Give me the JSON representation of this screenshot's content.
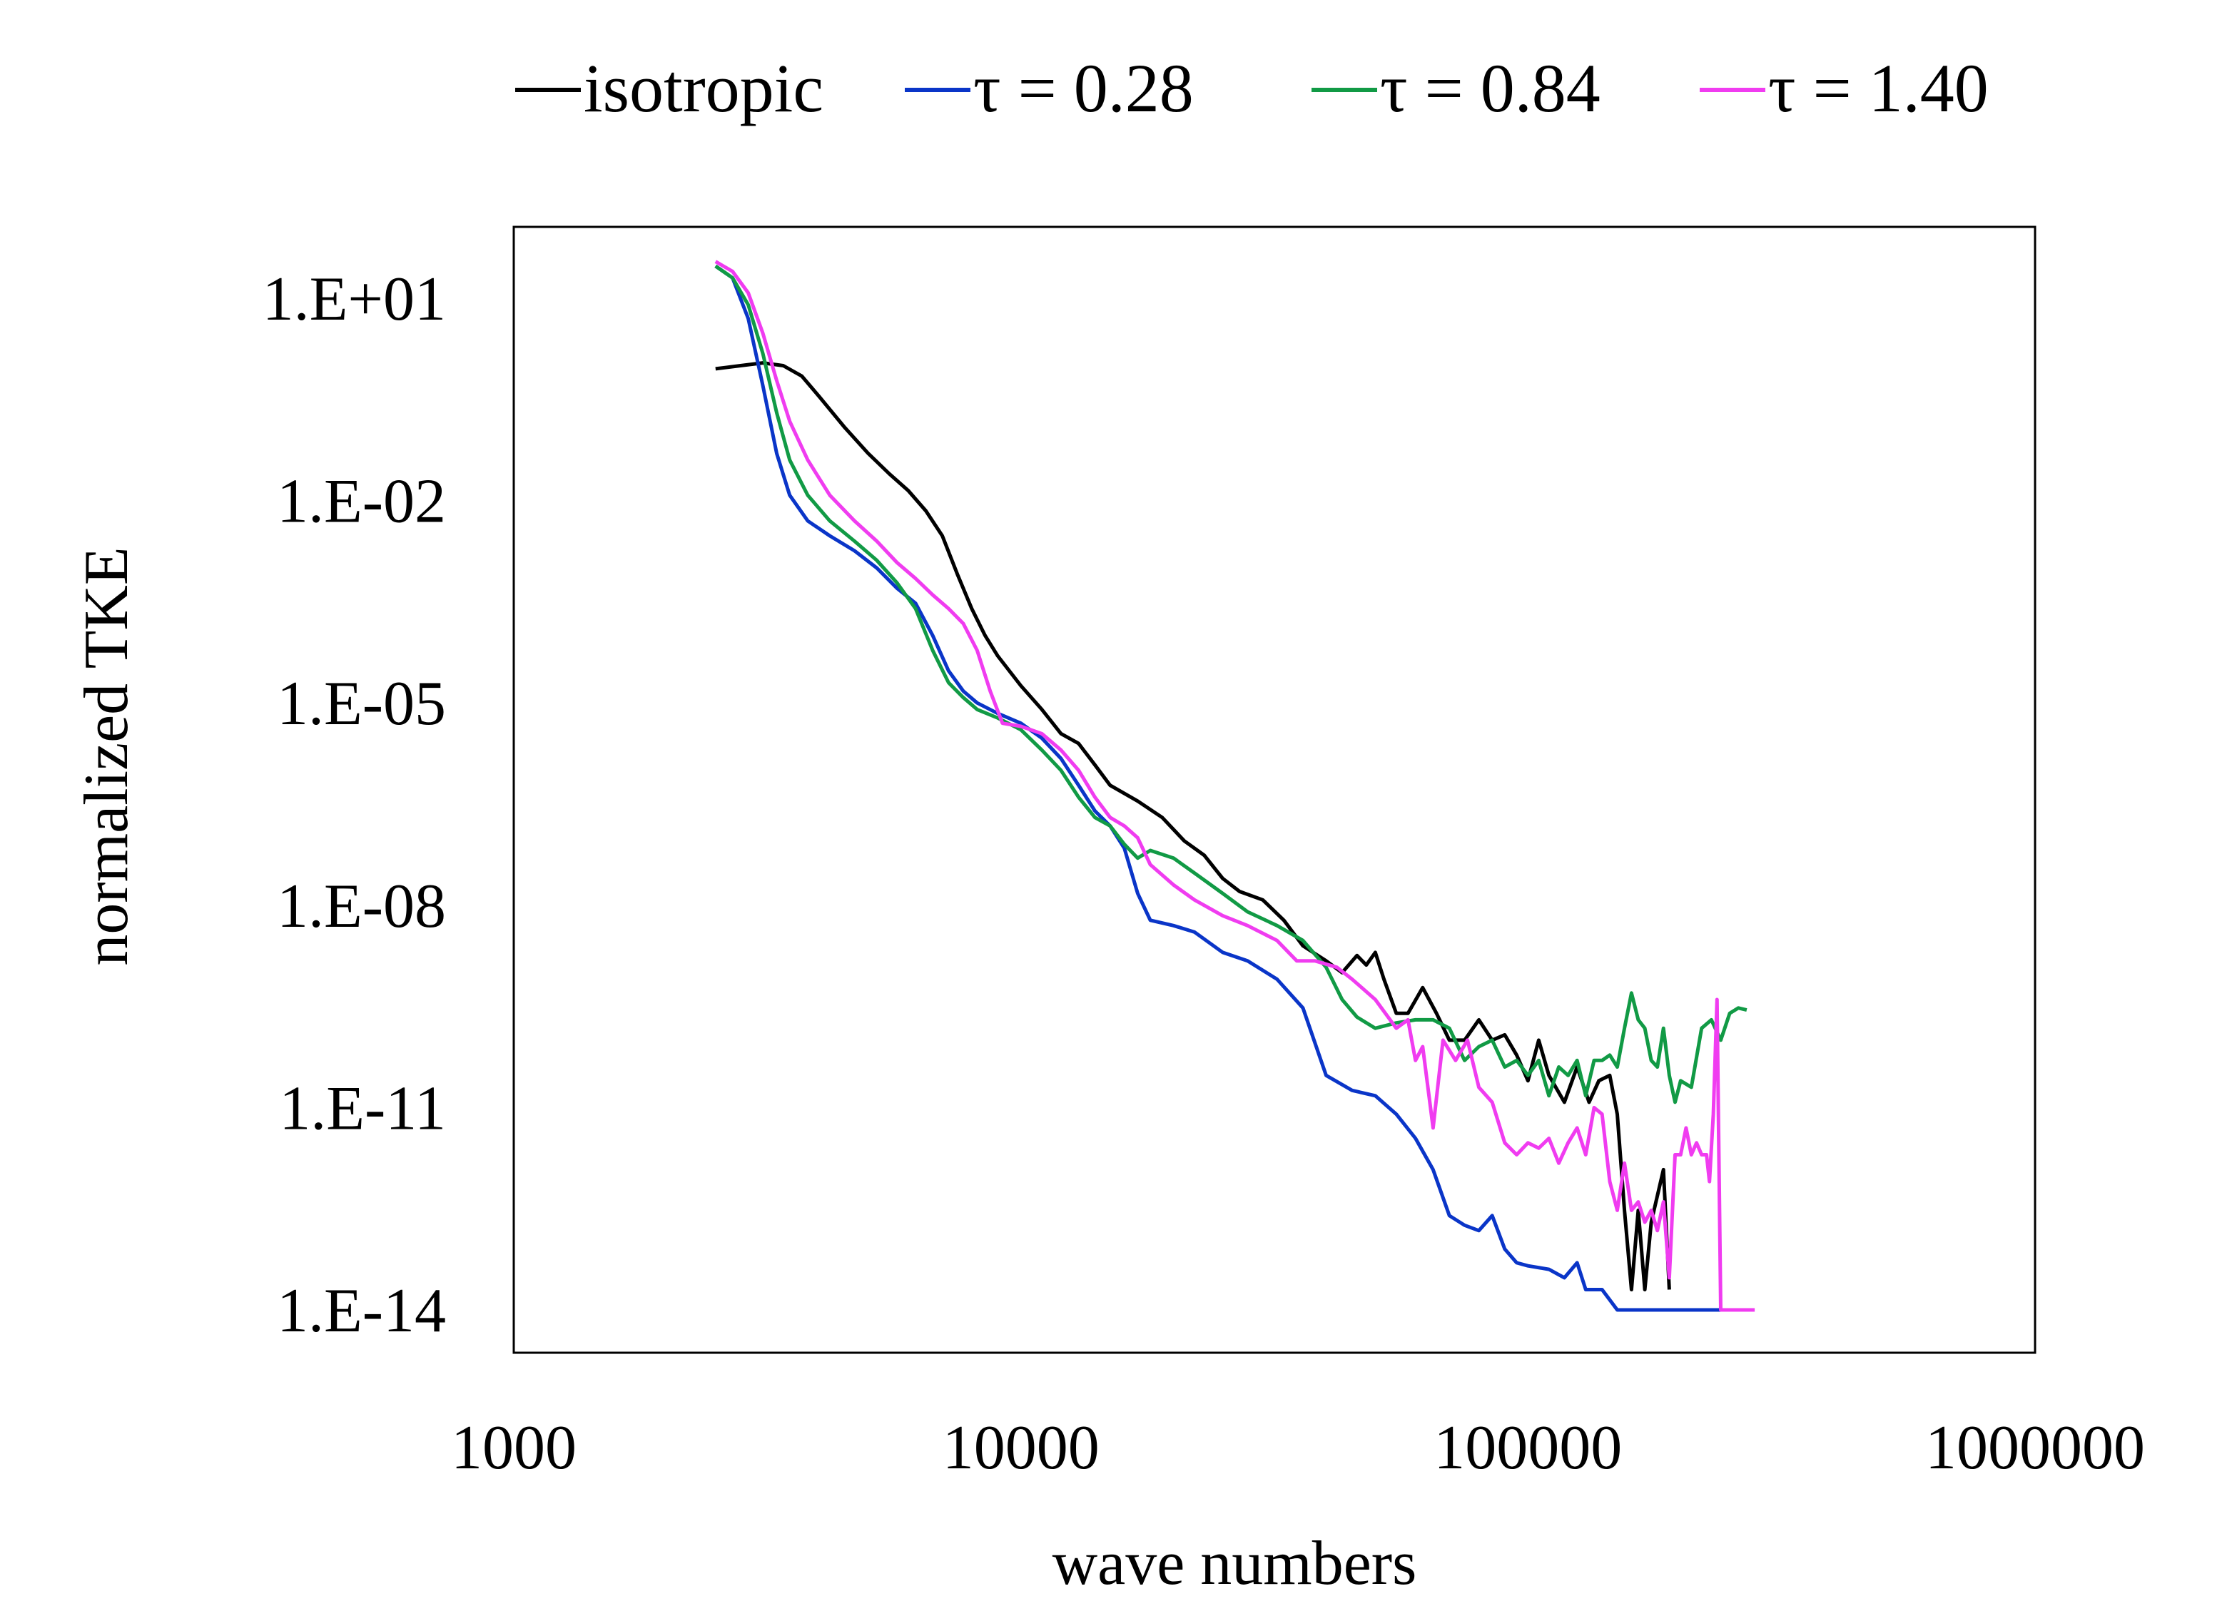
{
  "chart_data": {
    "type": "line",
    "xscale": "log",
    "yscale": "log",
    "xlabel": "wave numbers",
    "ylabel": "normalized TKE",
    "xlim": [
      1000,
      1000000
    ],
    "ylim": [
      1e-14,
      100.0
    ],
    "x_ticks": [
      {
        "value": 1000,
        "label": "1000"
      },
      {
        "value": 10000,
        "label": "10000"
      },
      {
        "value": 100000,
        "label": "100000"
      },
      {
        "value": 1000000,
        "label": "1000000"
      }
    ],
    "y_ticks": [
      {
        "value": 10.0,
        "label": "1.E+01"
      },
      {
        "value": 0.01,
        "label": "1.E-02"
      },
      {
        "value": 1e-05,
        "label": "1.E-05"
      },
      {
        "value": 1e-08,
        "label": "1.E-08"
      },
      {
        "value": 1e-11,
        "label": "1.E-11"
      },
      {
        "value": 1e-14,
        "label": "1.E-14"
      }
    ],
    "grid": false,
    "legend_position": "top",
    "series": [
      {
        "name": "isotropic",
        "color": "#000000",
        "points": [
          [
            2500,
            0.9
          ],
          [
            2800,
            1.0
          ],
          [
            3100,
            1.1
          ],
          [
            3400,
            1.0
          ],
          [
            3700,
            0.7
          ],
          [
            4000,
            0.35
          ],
          [
            4500,
            0.12
          ],
          [
            5000,
            0.05
          ],
          [
            5500,
            0.025
          ],
          [
            6000,
            0.014
          ],
          [
            6500,
            0.007
          ],
          [
            7000,
            0.003
          ],
          [
            7500,
            0.0008
          ],
          [
            8000,
            0.00025
          ],
          [
            8500,
            0.0001
          ],
          [
            9000,
            5e-05
          ],
          [
            10000,
            1.8e-05
          ],
          [
            11000,
            8e-06
          ],
          [
            12000,
            3.5e-06
          ],
          [
            13000,
            2.5e-06
          ],
          [
            14000,
            1.2e-06
          ],
          [
            15000,
            6e-07
          ],
          [
            17000,
            3.5e-07
          ],
          [
            19000,
            2e-07
          ],
          [
            21000,
            9e-08
          ],
          [
            23000,
            5.5e-08
          ],
          [
            25000,
            2.5e-08
          ],
          [
            27000,
            1.6e-08
          ],
          [
            30000,
            1.2e-08
          ],
          [
            33000,
            6e-09
          ],
          [
            36000,
            2.5e-09
          ],
          [
            40000,
            1.5e-09
          ],
          [
            43000,
            1e-09
          ],
          [
            46000,
            1.8e-09
          ],
          [
            48000,
            1.3e-09
          ],
          [
            50000,
            2e-09
          ],
          [
            52000,
            8e-10
          ],
          [
            55000,
            2.5e-10
          ],
          [
            58000,
            2.5e-10
          ],
          [
            62000,
            6e-10
          ],
          [
            66000,
            2.5e-10
          ],
          [
            70000,
            1e-10
          ],
          [
            75000,
            1e-10
          ],
          [
            80000,
            2e-10
          ],
          [
            85000,
            1e-10
          ],
          [
            90000,
            1.2e-10
          ],
          [
            95000,
            6e-11
          ],
          [
            100000,
            2.5e-11
          ],
          [
            105000,
            1e-10
          ],
          [
            110000,
            3e-11
          ],
          [
            118000,
            1.2e-11
          ],
          [
            125000,
            4e-11
          ],
          [
            132000,
            1.2e-11
          ],
          [
            138000,
            2.5e-11
          ],
          [
            145000,
            3e-11
          ],
          [
            150000,
            8e-12
          ],
          [
            155000,
            3e-13
          ],
          [
            160000,
            2e-14
          ],
          [
            165000,
            3e-13
          ],
          [
            170000,
            2e-14
          ],
          [
            175000,
            2e-13
          ],
          [
            185000,
            1.2e-12
          ],
          [
            190000,
            2e-14
          ]
        ]
      },
      {
        "name": "τ = 0.28",
        "color": "#0a35c8",
        "points": [
          [
            2500,
            30
          ],
          [
            2700,
            20
          ],
          [
            2900,
            5
          ],
          [
            3100,
            0.5
          ],
          [
            3300,
            0.05
          ],
          [
            3500,
            0.012
          ],
          [
            3800,
            0.005
          ],
          [
            4200,
            0.003
          ],
          [
            4700,
            0.0018
          ],
          [
            5200,
            0.001
          ],
          [
            5700,
            0.0005
          ],
          [
            6200,
            0.0003
          ],
          [
            6700,
            0.0001
          ],
          [
            7200,
            3e-05
          ],
          [
            7700,
            1.5e-05
          ],
          [
            8200,
            1e-05
          ],
          [
            9000,
            7e-06
          ],
          [
            10000,
            5e-06
          ],
          [
            11000,
            3e-06
          ],
          [
            12000,
            1.5e-06
          ],
          [
            13000,
            6e-07
          ],
          [
            14000,
            2.5e-07
          ],
          [
            15000,
            1.5e-07
          ],
          [
            16000,
            7e-08
          ],
          [
            17000,
            1.5e-08
          ],
          [
            18000,
            6e-09
          ],
          [
            20000,
            5e-09
          ],
          [
            22000,
            4e-09
          ],
          [
            25000,
            2e-09
          ],
          [
            28000,
            1.5e-09
          ],
          [
            32000,
            8e-10
          ],
          [
            36000,
            3e-10
          ],
          [
            40000,
            3e-11
          ],
          [
            45000,
            1.8e-11
          ],
          [
            50000,
            1.5e-11
          ],
          [
            55000,
            8e-12
          ],
          [
            60000,
            3.5e-12
          ],
          [
            65000,
            1.2e-12
          ],
          [
            70000,
            2.5e-13
          ],
          [
            75000,
            1.8e-13
          ],
          [
            80000,
            1.5e-13
          ],
          [
            85000,
            2.5e-13
          ],
          [
            90000,
            8e-14
          ],
          [
            95000,
            5e-14
          ],
          [
            100000,
            4.5e-14
          ],
          [
            110000,
            4e-14
          ],
          [
            118000,
            3e-14
          ],
          [
            125000,
            5e-14
          ],
          [
            130000,
            2e-14
          ],
          [
            140000,
            2e-14
          ],
          [
            150000,
            1e-14
          ],
          [
            160000,
            1e-14
          ],
          [
            180000,
            1e-14
          ],
          [
            200000,
            1e-14
          ],
          [
            250000,
            1e-14
          ]
        ]
      },
      {
        "name": "τ = 0.84",
        "color": "#119a45",
        "points": [
          [
            2500,
            30
          ],
          [
            2700,
            20
          ],
          [
            2900,
            8
          ],
          [
            3100,
            1.5
          ],
          [
            3300,
            0.2
          ],
          [
            3500,
            0.04
          ],
          [
            3800,
            0.012
          ],
          [
            4200,
            0.005
          ],
          [
            4700,
            0.0025
          ],
          [
            5200,
            0.0013
          ],
          [
            5700,
            0.0006
          ],
          [
            6200,
            0.00025
          ],
          [
            6700,
            6e-05
          ],
          [
            7200,
            2e-05
          ],
          [
            7700,
            1.2e-05
          ],
          [
            8200,
            8e-06
          ],
          [
            9000,
            6e-06
          ],
          [
            10000,
            4e-06
          ],
          [
            11000,
            2e-06
          ],
          [
            12000,
            1e-06
          ],
          [
            13000,
            4e-07
          ],
          [
            14000,
            2e-07
          ],
          [
            15000,
            1.5e-07
          ],
          [
            16000,
            8e-08
          ],
          [
            17000,
            5e-08
          ],
          [
            18000,
            6.5e-08
          ],
          [
            20000,
            5e-08
          ],
          [
            22000,
            3e-08
          ],
          [
            25000,
            1.5e-08
          ],
          [
            28000,
            8e-09
          ],
          [
            32000,
            5e-09
          ],
          [
            36000,
            3e-09
          ],
          [
            40000,
            1.2e-09
          ],
          [
            43000,
            4e-10
          ],
          [
            46000,
            2.2e-10
          ],
          [
            50000,
            1.5e-10
          ],
          [
            55000,
            1.8e-10
          ],
          [
            60000,
            2e-10
          ],
          [
            65000,
            2e-10
          ],
          [
            70000,
            1.5e-10
          ],
          [
            75000,
            5e-11
          ],
          [
            80000,
            8e-11
          ],
          [
            85000,
            1e-10
          ],
          [
            90000,
            4e-11
          ],
          [
            95000,
            5e-11
          ],
          [
            100000,
            3e-11
          ],
          [
            105000,
            5e-11
          ],
          [
            110000,
            1.5e-11
          ],
          [
            115000,
            4e-11
          ],
          [
            120000,
            3e-11
          ],
          [
            125000,
            5e-11
          ],
          [
            130000,
            1.5e-11
          ],
          [
            135000,
            5e-11
          ],
          [
            140000,
            5e-11
          ],
          [
            145000,
            6e-11
          ],
          [
            150000,
            4e-11
          ],
          [
            155000,
            1.5e-10
          ],
          [
            160000,
            5e-10
          ],
          [
            165000,
            2e-10
          ],
          [
            170000,
            1.5e-10
          ],
          [
            175000,
            5e-11
          ],
          [
            180000,
            4e-11
          ],
          [
            185000,
            1.5e-10
          ],
          [
            190000,
            3e-11
          ],
          [
            195000,
            1.2e-11
          ],
          [
            200000,
            2.5e-11
          ],
          [
            210000,
            2e-11
          ],
          [
            220000,
            1.5e-10
          ],
          [
            230000,
            2e-10
          ],
          [
            240000,
            1e-10
          ],
          [
            250000,
            2.5e-10
          ],
          [
            260000,
            3e-10
          ],
          [
            270000,
            2.8e-10
          ]
        ]
      },
      {
        "name": "τ = 1.40",
        "color": "#f03cf0",
        "points": [
          [
            2500,
            35
          ],
          [
            2700,
            25
          ],
          [
            2900,
            12
          ],
          [
            3100,
            3
          ],
          [
            3300,
            0.6
          ],
          [
            3500,
            0.15
          ],
          [
            3800,
            0.04
          ],
          [
            4200,
            0.012
          ],
          [
            4700,
            0.005
          ],
          [
            5200,
            0.0025
          ],
          [
            5700,
            0.0012
          ],
          [
            6200,
            0.0007
          ],
          [
            6700,
            0.0004
          ],
          [
            7200,
            0.00025
          ],
          [
            7700,
            0.00015
          ],
          [
            8200,
            6e-05
          ],
          [
            8700,
            1.5e-05
          ],
          [
            9200,
            5e-06
          ],
          [
            10000,
            4.5e-06
          ],
          [
            11000,
            3.5e-06
          ],
          [
            12000,
            2e-06
          ],
          [
            13000,
            1e-06
          ],
          [
            14000,
            4e-07
          ],
          [
            15000,
            2e-07
          ],
          [
            16000,
            1.5e-07
          ],
          [
            17000,
            1e-07
          ],
          [
            18000,
            4e-08
          ],
          [
            20000,
            2e-08
          ],
          [
            22000,
            1.2e-08
          ],
          [
            25000,
            7e-09
          ],
          [
            28000,
            5e-09
          ],
          [
            32000,
            3e-09
          ],
          [
            35000,
            1.5e-09
          ],
          [
            38000,
            1.5e-09
          ],
          [
            42000,
            1.2e-09
          ],
          [
            45000,
            8e-10
          ],
          [
            50000,
            4e-10
          ],
          [
            55000,
            1.5e-10
          ],
          [
            58000,
            2e-10
          ],
          [
            60000,
            5e-11
          ],
          [
            62000,
            8e-11
          ],
          [
            65000,
            5e-12
          ],
          [
            68000,
            1e-10
          ],
          [
            72000,
            5e-11
          ],
          [
            76000,
            1e-10
          ],
          [
            80000,
            2e-11
          ],
          [
            85000,
            1.2e-11
          ],
          [
            90000,
            3e-12
          ],
          [
            95000,
            2e-12
          ],
          [
            100000,
            3e-12
          ],
          [
            105000,
            2.5e-12
          ],
          [
            110000,
            3.5e-12
          ],
          [
            115000,
            1.5e-12
          ],
          [
            120000,
            3e-12
          ],
          [
            125000,
            5e-12
          ],
          [
            130000,
            2e-12
          ],
          [
            135000,
            1e-11
          ],
          [
            140000,
            8e-12
          ],
          [
            145000,
            8e-13
          ],
          [
            150000,
            3e-13
          ],
          [
            155000,
            1.5e-12
          ],
          [
            160000,
            3e-13
          ],
          [
            165000,
            4e-13
          ],
          [
            170000,
            2e-13
          ],
          [
            175000,
            3e-13
          ],
          [
            180000,
            1.5e-13
          ],
          [
            185000,
            4e-13
          ],
          [
            190000,
            3e-14
          ],
          [
            195000,
            2e-12
          ],
          [
            200000,
            2e-12
          ],
          [
            205000,
            5e-12
          ],
          [
            210000,
            2e-12
          ],
          [
            215000,
            3e-12
          ],
          [
            220000,
            2e-12
          ],
          [
            225000,
            2e-12
          ],
          [
            228000,
            8e-13
          ],
          [
            232000,
            8e-12
          ],
          [
            236000,
            4e-10
          ],
          [
            240000,
            1e-14
          ],
          [
            250000,
            1e-14
          ],
          [
            260000,
            1e-14
          ],
          [
            280000,
            1e-14
          ]
        ]
      }
    ]
  }
}
